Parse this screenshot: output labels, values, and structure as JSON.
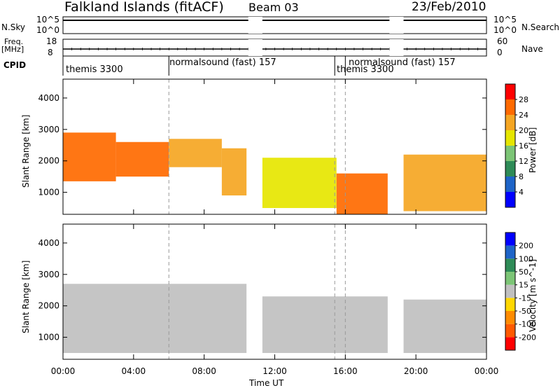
{
  "header": {
    "station": "Falkland Islands (fitACF)",
    "beam": "Beam 03",
    "date": "23/Feb/2010"
  },
  "status_panels": {
    "nsky_label": "N.Sky",
    "nsearch_label": "N.Search",
    "nsky_ticks": [
      "10^5",
      "10^0"
    ],
    "nsearch_ticks": [
      "10^5",
      "10^0"
    ],
    "freq_label": "Freq.",
    "freq_unit": "[MHz]",
    "freq_ticks": [
      "18",
      "8"
    ],
    "nave_label": "Nave",
    "nave_ticks": [
      "60",
      "0"
    ],
    "cpid_label": "CPID",
    "cpid_segments": [
      {
        "label": "themis 3300",
        "start_h": 0.0,
        "end_h": 6.0
      },
      {
        "label": "normalsound (fast) 157",
        "start_h": 6.0,
        "end_h": 15.4
      },
      {
        "label": "themis 3300",
        "start_h": 15.4,
        "end_h": 16.0
      },
      {
        "label": "normalsound (fast) 157",
        "start_h": 16.0,
        "end_h": 24.0
      }
    ],
    "data_gaps_h": [
      [
        10.5,
        11.3
      ],
      [
        18.5,
        19.3
      ]
    ]
  },
  "axes": {
    "x_label": "Time UT",
    "x_ticks": [
      "00:00",
      "04:00",
      "08:00",
      "12:00",
      "16:00",
      "20:00",
      "00:00"
    ],
    "x_range_h": [
      0,
      24
    ],
    "y_label": "Slant Range [km]",
    "y_ticks": [
      "1000",
      "2000",
      "3000",
      "4000"
    ],
    "y_range_km": [
      300,
      4600
    ]
  },
  "chart_data": [
    {
      "type": "heatmap",
      "quantity": "Power",
      "colorbar_label": "Power [dB]",
      "colorbar_ticks": [
        "28",
        "24",
        "20",
        "16",
        "12",
        "8",
        "4"
      ],
      "colorbar_range": [
        0,
        32
      ],
      "colors": [
        "#0000ff",
        "#1e64c8",
        "#2e8b57",
        "#7cc576",
        "#e6e600",
        "#f5a623",
        "#ff6a00",
        "#ff0000"
      ],
      "x_range_h": [
        0,
        24
      ],
      "y_range_km": [
        300,
        4600
      ],
      "bands": [
        {
          "start_h": 0.0,
          "end_h": 3.0,
          "low_km": 1350,
          "high_km": 2900,
          "power_db": 26
        },
        {
          "start_h": 3.0,
          "end_h": 6.0,
          "low_km": 1500,
          "high_km": 2600,
          "power_db": 25
        },
        {
          "start_h": 6.0,
          "end_h": 9.0,
          "low_km": 1800,
          "high_km": 2700,
          "power_db": 22
        },
        {
          "start_h": 9.0,
          "end_h": 10.4,
          "low_km": 900,
          "high_km": 2400,
          "power_db": 20
        },
        {
          "start_h": 11.3,
          "end_h": 15.5,
          "low_km": 500,
          "high_km": 2100,
          "power_db": 18
        },
        {
          "start_h": 15.5,
          "end_h": 18.4,
          "low_km": 300,
          "high_km": 1600,
          "power_db": 24
        },
        {
          "start_h": 19.3,
          "end_h": 24.0,
          "low_km": 400,
          "high_km": 2200,
          "power_db": 22
        }
      ]
    },
    {
      "type": "heatmap",
      "quantity": "Velocity",
      "colorbar_label": "Velocity [m s^-1]",
      "colorbar_ticks": [
        "200",
        "100",
        "50",
        "15",
        "-15",
        "-50",
        "-100",
        "-200"
      ],
      "colorbar_range": [
        -250,
        250
      ],
      "colors": [
        "#ff0000",
        "#ff5a00",
        "#ff8c00",
        "#ffd700",
        "#c0c0c0",
        "#7cc576",
        "#2e8b57",
        "#1e64c8",
        "#0000ff"
      ],
      "ground_scatter_color": "#c0c0c0",
      "x_range_h": [
        0,
        24
      ],
      "y_range_km": [
        300,
        4600
      ],
      "bands": [
        {
          "start_h": 0.0,
          "end_h": 10.4,
          "low_km": 500,
          "high_km": 2700,
          "velocity_ms": 0
        },
        {
          "start_h": 11.3,
          "end_h": 18.4,
          "low_km": 500,
          "high_km": 2300,
          "velocity_ms": 0
        },
        {
          "start_h": 19.3,
          "end_h": 24.0,
          "low_km": 500,
          "high_km": 2200,
          "velocity_ms": 0
        }
      ]
    }
  ]
}
